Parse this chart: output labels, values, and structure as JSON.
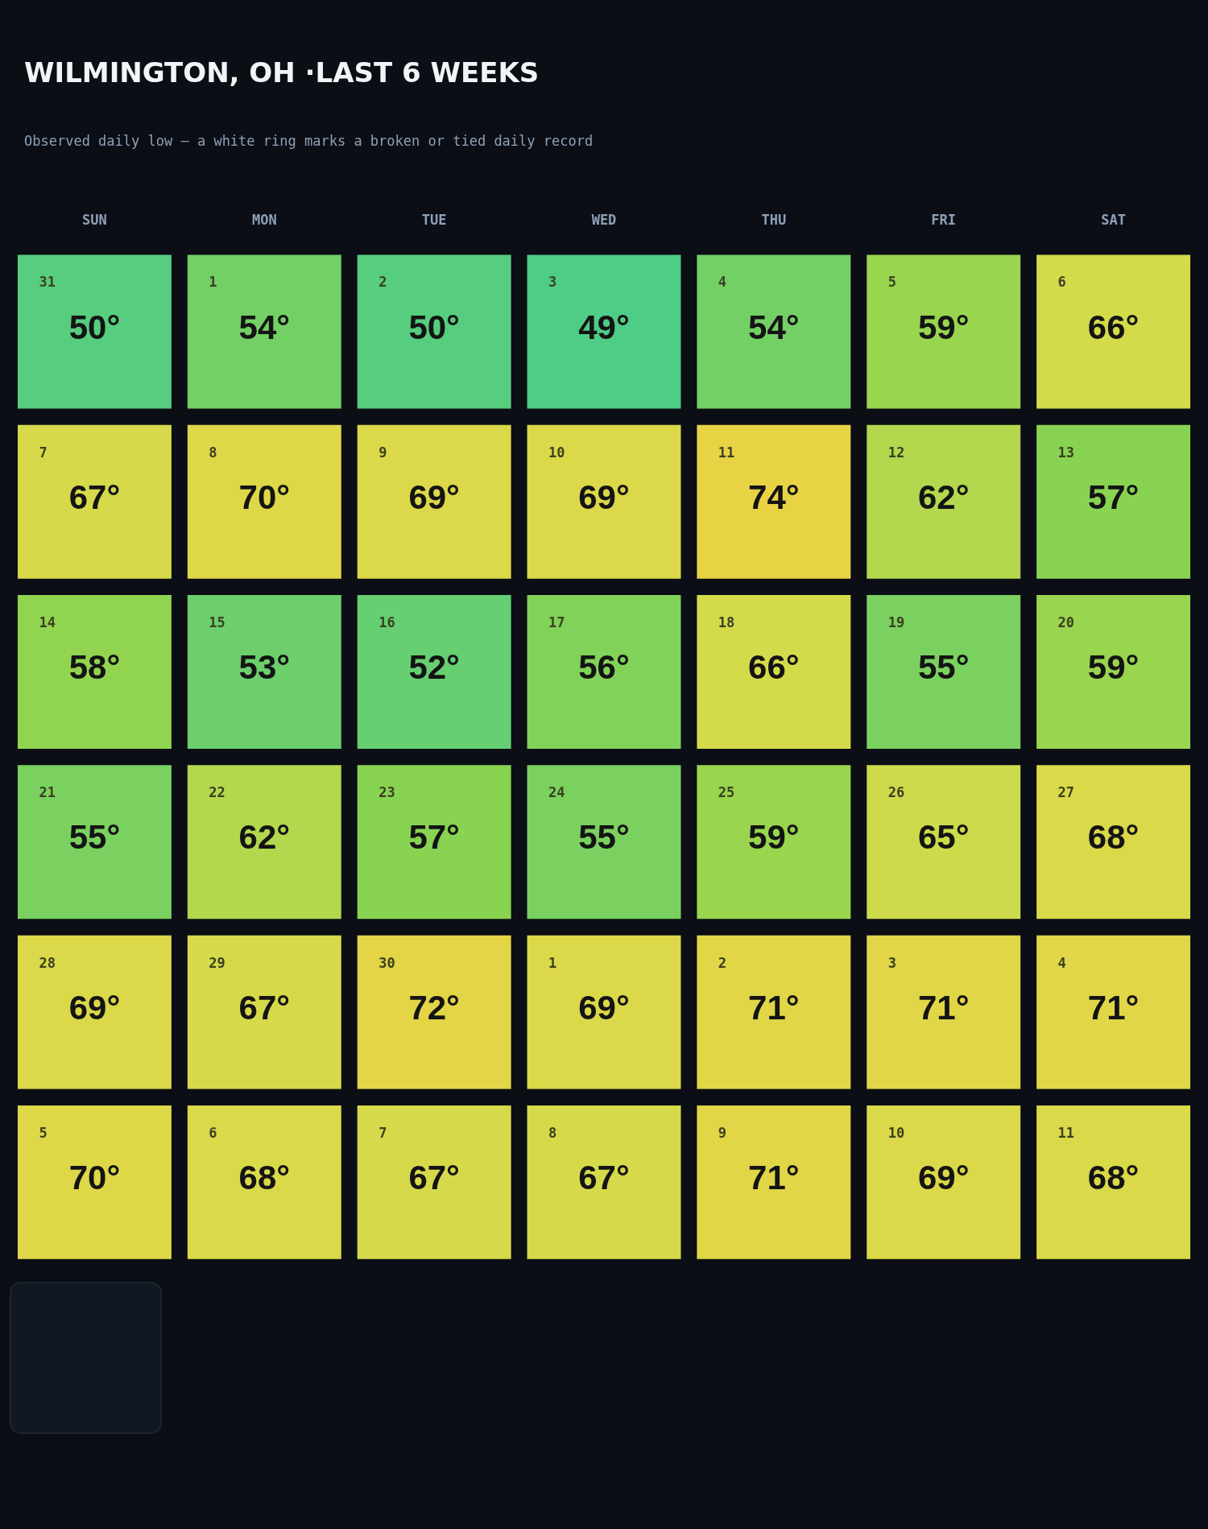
{
  "chart_data": {
    "type": "heatmap",
    "title": "WILMINGTON, OH ·LAST 6 WEEKS",
    "subtitle": "Observed daily low — a white ring marks a broken or tied daily record",
    "categories": [
      "SUN",
      "MON",
      "TUE",
      "WED",
      "THU",
      "FRI",
      "SAT"
    ],
    "y_categories": [
      null,
      null,
      null,
      null,
      null,
      null
    ],
    "cells": [
      [
        50,
        54,
        50,
        49,
        54,
        59,
        66
      ],
      [
        67,
        70,
        69,
        69,
        74,
        62,
        57
      ],
      [
        58,
        53,
        52,
        56,
        66,
        55,
        59
      ],
      [
        55,
        62,
        57,
        55,
        59,
        65,
        68
      ],
      [
        69,
        67,
        72,
        69,
        71,
        71,
        71
      ],
      [
        70,
        68,
        67,
        67,
        71,
        69,
        68
      ]
    ],
    "cell_labels": [
      [
        "50°",
        "54°",
        "50°",
        "49°",
        "54°",
        "59°",
        "66°"
      ],
      [
        "67°",
        "70°",
        "69°",
        "69°",
        "74°",
        "62°",
        "57°"
      ],
      [
        "58°",
        "53°",
        "52°",
        "56°",
        "66°",
        "55°",
        "59°"
      ],
      [
        "55°",
        "62°",
        "57°",
        "55°",
        "59°",
        "65°",
        "68°"
      ],
      [
        "69°",
        "67°",
        "72°",
        "69°",
        "71°",
        "71°",
        "71°"
      ],
      [
        "70°",
        "68°",
        "67°",
        "67°",
        "71°",
        "69°",
        "68°"
      ]
    ],
    "annotations": [
      "31",
      "1",
      "2",
      "3",
      "4",
      "5",
      "6",
      "7",
      "8",
      "9",
      "10",
      "11",
      "12",
      "13",
      "14",
      "15",
      "16",
      "17",
      "18",
      "19",
      "20",
      "21",
      "22",
      "23",
      "24",
      "25",
      "26",
      "27",
      "28",
      "29",
      "30",
      "1",
      "2",
      "3",
      "4",
      "5",
      "6",
      "7",
      "8",
      "9",
      "10",
      "11"
    ]
  }
}
